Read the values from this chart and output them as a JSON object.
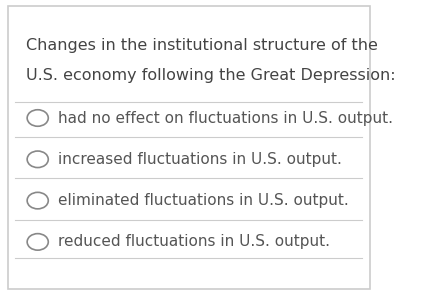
{
  "title_line1": "Changes in the institutional structure of the",
  "title_line2": "U.S. economy following the Great Depression:",
  "options": [
    "had no effect on fluctuations in U.S. output.",
    "increased fluctuations in U.S. output.",
    "eliminated fluctuations in U.S. output.",
    "reduced fluctuations in U.S. output."
  ],
  "background_color": "#ffffff",
  "border_color": "#cccccc",
  "text_color": "#555555",
  "title_color": "#444444",
  "circle_color": "#888888",
  "divider_color": "#cccccc",
  "title_fontsize": 11.5,
  "option_fontsize": 11.0,
  "figsize": [
    4.34,
    2.95
  ],
  "dpi": 100
}
